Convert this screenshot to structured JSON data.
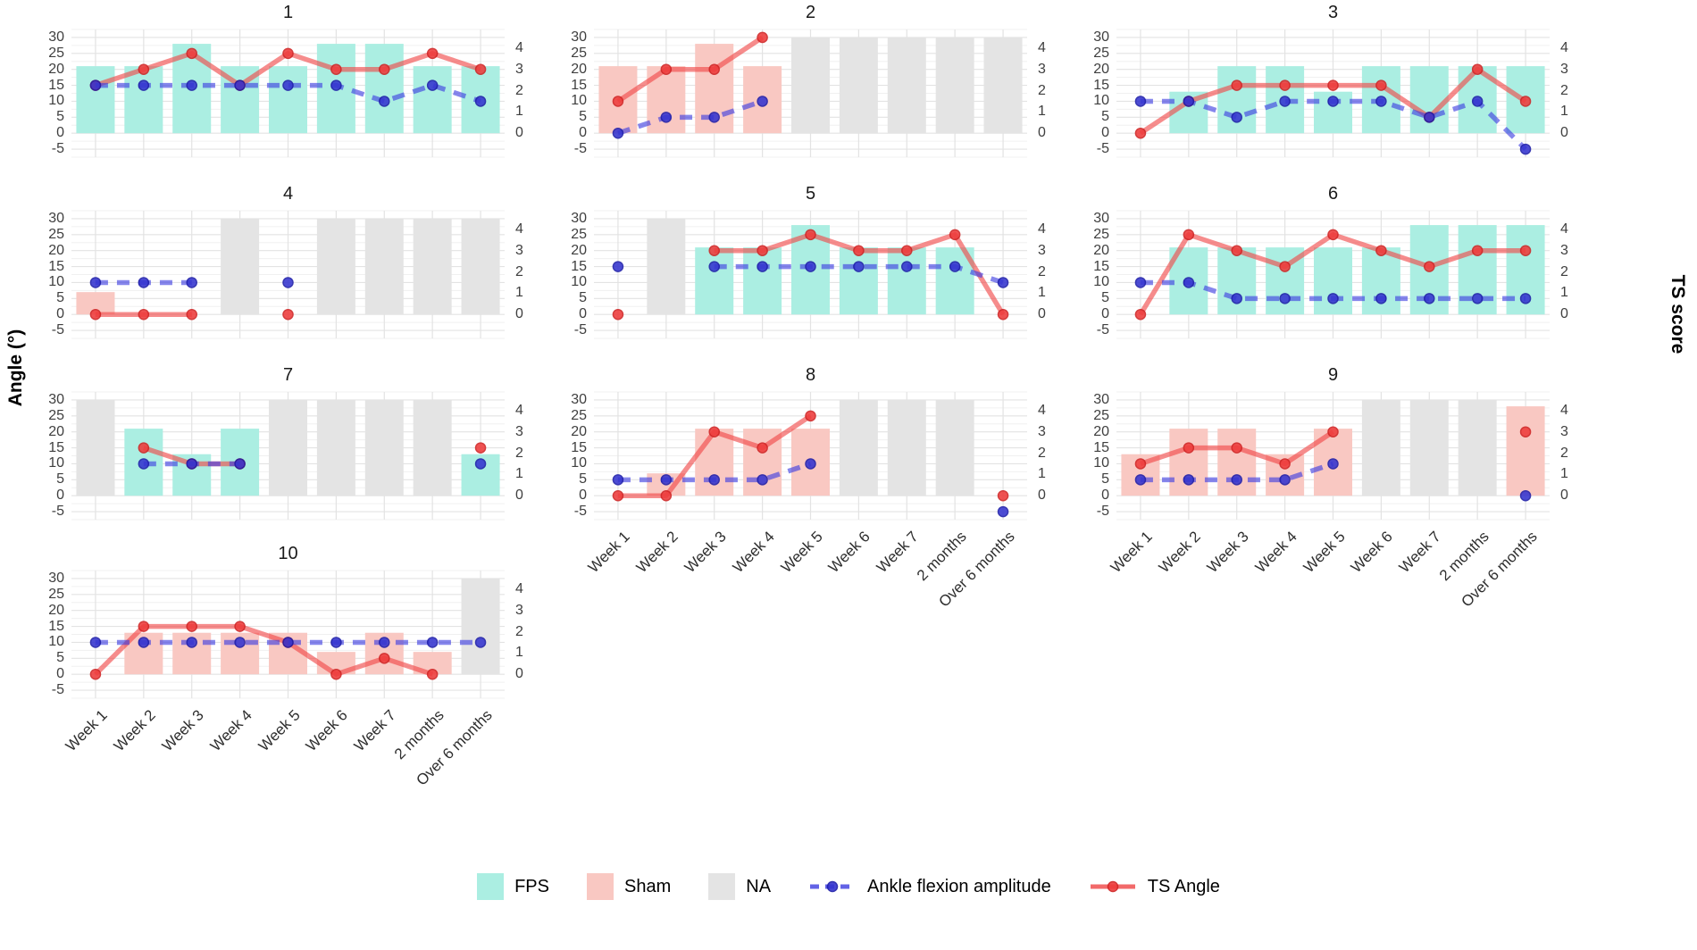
{
  "figure": {
    "left_axis_title": "Angle (°)",
    "right_axis_title": "TS score"
  },
  "legend": {
    "fps_label": "FPS",
    "sham_label": "Sham",
    "na_label": "NA",
    "amplitude_label": "Ankle flexion amplitude",
    "ts_angle_label": "TS Angle"
  },
  "colors": {
    "fps": "#abeee2",
    "sham": "#f9c8c2",
    "na": "#e4e4e4",
    "blue": "#3b3be0",
    "blue_point": "#3434cf",
    "blue_point_stroke": "#1d1da8",
    "red": "#f04545",
    "red_point": "#ee3b3b",
    "red_point_stroke": "#cf2323",
    "grid_major": "#e3e3e3",
    "grid_minor": "#f0f0f0"
  },
  "chart_data": {
    "type": "bar",
    "subtype": "small-multiples bar + two line series per panel (one panel per subject)",
    "categories": [
      "Week 1",
      "Week 2",
      "Week 3",
      "Week 4",
      "Week 5",
      "Week 6",
      "Week 7",
      "2 months",
      "Over 6 months"
    ],
    "left_axis": {
      "label": "Angle (°)",
      "ticks": [
        30,
        25,
        20,
        15,
        10,
        5,
        0,
        -5
      ],
      "range": [
        -7.5,
        32.5
      ]
    },
    "right_axis": {
      "label": "TS score",
      "ticks": [
        4,
        3,
        2,
        1,
        0
      ],
      "degrees_per_score": 6.667
    },
    "bar_conditions": {
      "F": "FPS",
      "S": "Sham",
      "N": "NA"
    },
    "na_bar_height": 30,
    "series_legend": [
      "Ankle flexion amplitude (blue dashed)",
      "TS Angle (red solid)"
    ],
    "grid": true,
    "panels": [
      {
        "title": "1",
        "show_x_labels": false,
        "bars": [
          [
            "F",
            21
          ],
          [
            "F",
            21
          ],
          [
            "F",
            28
          ],
          [
            "F",
            21
          ],
          [
            "F",
            21
          ],
          [
            "F",
            28
          ],
          [
            "F",
            28
          ],
          [
            "F",
            21
          ],
          [
            "F",
            21
          ]
        ],
        "amplitude": [
          15,
          15,
          15,
          15,
          15,
          15,
          10,
          15,
          10
        ],
        "ts_angle": [
          15,
          20,
          25,
          15,
          25,
          20,
          20,
          25,
          20
        ]
      },
      {
        "title": "2",
        "show_x_labels": false,
        "bars": [
          [
            "S",
            21
          ],
          [
            "S",
            21
          ],
          [
            "S",
            28
          ],
          [
            "S",
            21
          ],
          [
            "N",
            30
          ],
          [
            "N",
            30
          ],
          [
            "N",
            30
          ],
          [
            "N",
            30
          ],
          [
            "N",
            30
          ]
        ],
        "amplitude": [
          0,
          5,
          5,
          10,
          null,
          null,
          null,
          null,
          null
        ],
        "ts_angle": [
          10,
          20,
          20,
          30,
          null,
          null,
          null,
          null,
          null
        ]
      },
      {
        "title": "3",
        "show_x_labels": false,
        "bars": [
          null,
          [
            "F",
            13
          ],
          [
            "F",
            21
          ],
          [
            "F",
            21
          ],
          [
            "F",
            13
          ],
          [
            "F",
            21
          ],
          [
            "F",
            21
          ],
          [
            "F",
            21
          ],
          [
            "F",
            21
          ]
        ],
        "amplitude": [
          10,
          10,
          5,
          10,
          10,
          10,
          5,
          10,
          -5
        ],
        "ts_angle": [
          0,
          10,
          15,
          15,
          15,
          15,
          5,
          20,
          10
        ]
      },
      {
        "title": "4",
        "show_x_labels": false,
        "bars": [
          [
            "S",
            7
          ],
          null,
          null,
          [
            "N",
            30
          ],
          null,
          [
            "N",
            30
          ],
          [
            "N",
            30
          ],
          [
            "N",
            30
          ],
          [
            "N",
            30
          ]
        ],
        "amplitude": [
          10,
          10,
          10,
          null,
          10,
          null,
          null,
          null,
          null
        ],
        "ts_angle": [
          0,
          0,
          0,
          null,
          0,
          null,
          null,
          null,
          null
        ]
      },
      {
        "title": "5",
        "show_x_labels": false,
        "bars": [
          null,
          [
            "N",
            30
          ],
          [
            "F",
            21
          ],
          [
            "F",
            21
          ],
          [
            "F",
            28
          ],
          [
            "F",
            21
          ],
          [
            "F",
            21
          ],
          [
            "F",
            21
          ],
          null
        ],
        "amplitude": [
          15,
          null,
          15,
          15,
          15,
          15,
          15,
          15,
          10
        ],
        "ts_angle": [
          0,
          null,
          20,
          20,
          25,
          20,
          20,
          25,
          0
        ]
      },
      {
        "title": "6",
        "show_x_labels": false,
        "bars": [
          null,
          [
            "F",
            21
          ],
          [
            "F",
            21
          ],
          [
            "F",
            21
          ],
          [
            "F",
            21
          ],
          [
            "F",
            21
          ],
          [
            "F",
            28
          ],
          [
            "F",
            28
          ],
          [
            "F",
            28
          ]
        ],
        "amplitude": [
          10,
          10,
          5,
          5,
          5,
          5,
          5,
          5,
          5
        ],
        "ts_angle": [
          0,
          25,
          20,
          15,
          25,
          20,
          15,
          20,
          20
        ]
      },
      {
        "title": "7",
        "show_x_labels": false,
        "bars": [
          [
            "N",
            30
          ],
          [
            "F",
            21
          ],
          [
            "F",
            13
          ],
          [
            "F",
            21
          ],
          [
            "N",
            30
          ],
          [
            "N",
            30
          ],
          [
            "N",
            30
          ],
          [
            "N",
            30
          ],
          [
            "F",
            13
          ]
        ],
        "amplitude": [
          null,
          10,
          10,
          10,
          null,
          null,
          null,
          null,
          10
        ],
        "ts_angle": [
          null,
          15,
          10,
          10,
          null,
          null,
          null,
          null,
          15
        ]
      },
      {
        "title": "8",
        "show_x_labels": true,
        "bars": [
          null,
          [
            "S",
            7
          ],
          [
            "S",
            21
          ],
          [
            "S",
            21
          ],
          [
            "S",
            21
          ],
          [
            "N",
            30
          ],
          [
            "N",
            30
          ],
          [
            "N",
            30
          ],
          null
        ],
        "amplitude": [
          5,
          5,
          5,
          5,
          10,
          null,
          null,
          null,
          -5
        ],
        "ts_angle": [
          0,
          0,
          20,
          15,
          25,
          null,
          null,
          null,
          0
        ]
      },
      {
        "title": "9",
        "show_x_labels": true,
        "bars": [
          [
            "S",
            13
          ],
          [
            "S",
            21
          ],
          [
            "S",
            21
          ],
          [
            "S",
            13
          ],
          [
            "S",
            21
          ],
          [
            "N",
            30
          ],
          [
            "N",
            30
          ],
          [
            "N",
            30
          ],
          [
            "S",
            28
          ]
        ],
        "amplitude": [
          5,
          5,
          5,
          5,
          10,
          null,
          null,
          null,
          0
        ],
        "ts_angle": [
          10,
          15,
          15,
          10,
          20,
          null,
          null,
          null,
          20
        ]
      },
      {
        "title": "10",
        "show_x_labels": true,
        "bars": [
          null,
          [
            "S",
            13
          ],
          [
            "S",
            13
          ],
          [
            "S",
            13
          ],
          [
            "S",
            13
          ],
          [
            "S",
            7
          ],
          [
            "S",
            13
          ],
          [
            "S",
            7
          ],
          [
            "N",
            30
          ]
        ],
        "amplitude": [
          10,
          10,
          10,
          10,
          10,
          10,
          10,
          10,
          10
        ],
        "ts_angle": [
          0,
          15,
          15,
          15,
          10,
          0,
          5,
          0,
          null
        ]
      }
    ]
  }
}
